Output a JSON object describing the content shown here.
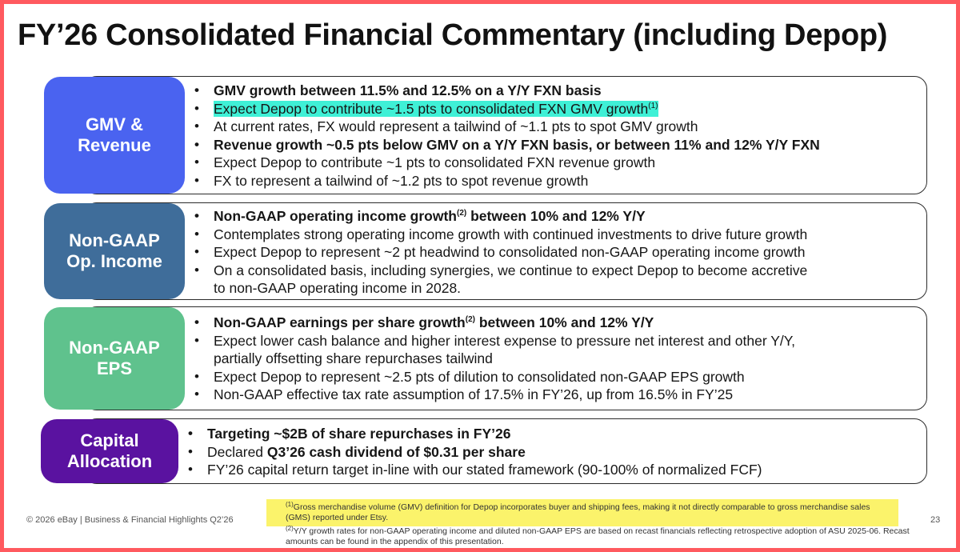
{
  "title": "FY’26 Consolidated Financial Commentary (including Depop)",
  "sections": [
    {
      "label": "GMV &\nRevenue",
      "color": "#4a63f0",
      "bullets": [
        {
          "text": "GMV growth between 11.5% and 12.5% on a Y/Y FXN basis",
          "bold": true
        },
        {
          "text": "Expect Depop to contribute ~1.5 pts to consolidated FXN GMV growth",
          "sup": "(1)",
          "highlight": "cyan"
        },
        {
          "text": "At current rates, FX would represent a tailwind of ~1.1 pts to spot GMV growth"
        },
        {
          "text": "Revenue growth ~0.5 pts below GMV on a Y/Y FXN basis, or between 11% and 12% Y/Y FXN",
          "bold": true
        },
        {
          "text": "Expect Depop to contribute ~1 pts to consolidated FXN revenue growth"
        },
        {
          "text": "FX to represent a tailwind of ~1.2 pts to spot revenue growth"
        }
      ]
    },
    {
      "label": "Non-GAAP\nOp. Income",
      "color": "#3f6d9a",
      "bullets": [
        {
          "text": "Non-GAAP operating income growth",
          "sup": "(2)",
          "after": " between 10% and 12% Y/Y",
          "bold": true
        },
        {
          "text": "Contemplates strong operating income growth with continued investments to drive future growth"
        },
        {
          "text": "Expect Depop to represent ~2 pt headwind to consolidated non-GAAP operating income growth"
        },
        {
          "text": "On a consolidated basis, including synergies, we continue to expect Depop to become accretive",
          "cont": "to non-GAAP operating income in 2028."
        }
      ]
    },
    {
      "label": "Non-GAAP\nEPS",
      "color": "#5fc28d",
      "bullets": [
        {
          "text": "Non-GAAP earnings per share growth",
          "sup": "(2)",
          "after": " between 10% and 12% Y/Y",
          "bold": true
        },
        {
          "text": "Expect lower cash balance and higher interest expense to pressure net interest and other Y/Y,",
          "cont": "partially offsetting share repurchases tailwind"
        },
        {
          "text": "Expect Depop to represent ~2.5 pts of dilution to consolidated non-GAAP EPS growth"
        },
        {
          "text": "Non-GAAP effective tax rate assumption of 17.5% in FY’26, up from 16.5% in FY’25"
        }
      ]
    },
    {
      "label": "Capital\nAllocation",
      "color": "#5a12a0",
      "bullets": [
        {
          "text": "Targeting ~$2B of share repurchases in FY’26",
          "bold": true
        },
        {
          "text": "Declared ",
          "boldpart": "Q3’26 cash dividend of $0.31 per share"
        },
        {
          "text": "FY’26 capital return target in-line with our stated framework (90-100% of normalized FCF)"
        }
      ]
    }
  ],
  "footer": "© 2026 eBay | Business & Financial Highlights Q2’26",
  "page_number": "23",
  "footnotes": [
    {
      "sup": "(1)",
      "text": "Gross merchandise volume (GMV) definition for Depop incorporates buyer and shipping fees, making it not directly comparable to gross merchandise sales (GMS) reported under Etsy."
    },
    {
      "sup": "(2)",
      "text": "Y/Y growth rates for non-GAAP operating income and diluted non-GAAP EPS are based on recast financials reflecting retrospective adoption of ASU 2025-06. Recast amounts can be found in the appendix of this presentation."
    }
  ]
}
